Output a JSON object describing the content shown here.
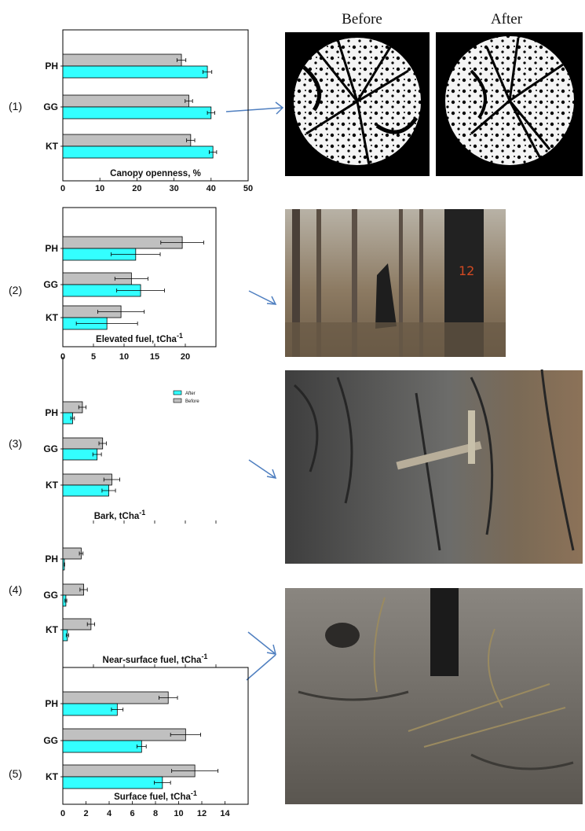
{
  "photo_labels": {
    "before": "Before",
    "after": "After"
  },
  "colors": {
    "before": "#c0c0c0",
    "after": "#33ffff",
    "arrow": "#4f7fc0",
    "photo_dark": "#000000"
  },
  "legend": {
    "after": "After",
    "before": "Before"
  },
  "chart_data": [
    {
      "type": "bar",
      "orientation": "horizontal",
      "panel_label": "(1)",
      "categories": [
        "PH",
        "GG",
        "KT"
      ],
      "series": [
        {
          "name": "Before",
          "values": [
            32,
            34,
            34.5
          ],
          "errors": [
            1.2,
            1.0,
            1.1
          ]
        },
        {
          "name": "After",
          "values": [
            39,
            40,
            40.5
          ],
          "errors": [
            1.2,
            1.0,
            1.0
          ]
        }
      ],
      "xlabel": "Canopy openness, %",
      "xlim": [
        0,
        50
      ],
      "xticks": [
        "0",
        "10",
        "20",
        "30",
        "40",
        "50"
      ]
    },
    {
      "type": "bar",
      "orientation": "horizontal",
      "panel_label": "(2)",
      "categories": [
        "PH",
        "GG",
        "KT"
      ],
      "series": [
        {
          "name": "Before",
          "values": [
            19.5,
            11.2,
            9.5
          ],
          "errors": [
            3.5,
            2.7,
            3.8
          ]
        },
        {
          "name": "After",
          "values": [
            11.9,
            12.7,
            7.2
          ],
          "errors": [
            4.0,
            3.9,
            5.0
          ]
        }
      ],
      "xlabel": "Elevated fuel, tCha-1",
      "xlim": [
        0,
        25
      ],
      "xticks": [
        "0",
        "5",
        "10",
        "15",
        "20"
      ]
    },
    {
      "type": "bar",
      "orientation": "horizontal",
      "panel_label": "(3)",
      "categories": [
        "PH",
        "GG",
        "KT"
      ],
      "series": [
        {
          "name": "Before",
          "values": [
            3.2,
            6.5,
            8.0
          ],
          "errors": [
            0.6,
            0.6,
            1.3
          ]
        },
        {
          "name": "After",
          "values": [
            1.6,
            5.6,
            7.5
          ],
          "errors": [
            0.3,
            0.7,
            1.1
          ]
        }
      ],
      "xlabel": "Bark, tCha-1",
      "xlim": [
        0,
        25
      ]
    },
    {
      "type": "bar",
      "orientation": "horizontal",
      "panel_label": "(4)",
      "categories": [
        "PH",
        "GG",
        "KT"
      ],
      "series": [
        {
          "name": "Before",
          "values": [
            3.0,
            3.4,
            4.6
          ],
          "errors": [
            0.3,
            0.6,
            0.6
          ]
        },
        {
          "name": "After",
          "values": [
            0.25,
            0.5,
            0.75
          ],
          "errors": [
            0.05,
            0.15,
            0.2
          ]
        }
      ],
      "xlabel": "Near-surface fuel, tCha-1",
      "xlim": [
        0,
        25
      ]
    },
    {
      "type": "bar",
      "orientation": "horizontal",
      "panel_label": "(5)",
      "categories": [
        "PH",
        "GG",
        "KT"
      ],
      "series": [
        {
          "name": "Before",
          "values": [
            9.1,
            10.6,
            11.4
          ],
          "errors": [
            0.8,
            1.3,
            2.0
          ]
        },
        {
          "name": "After",
          "values": [
            4.7,
            6.8,
            8.6
          ],
          "errors": [
            0.5,
            0.4,
            0.7
          ]
        }
      ],
      "xlabel": "Surface fuel, tCha-1",
      "xlim": [
        0,
        16
      ],
      "xticks": [
        "0",
        "2",
        "4",
        "6",
        "8",
        "10",
        "12",
        "14"
      ]
    }
  ]
}
